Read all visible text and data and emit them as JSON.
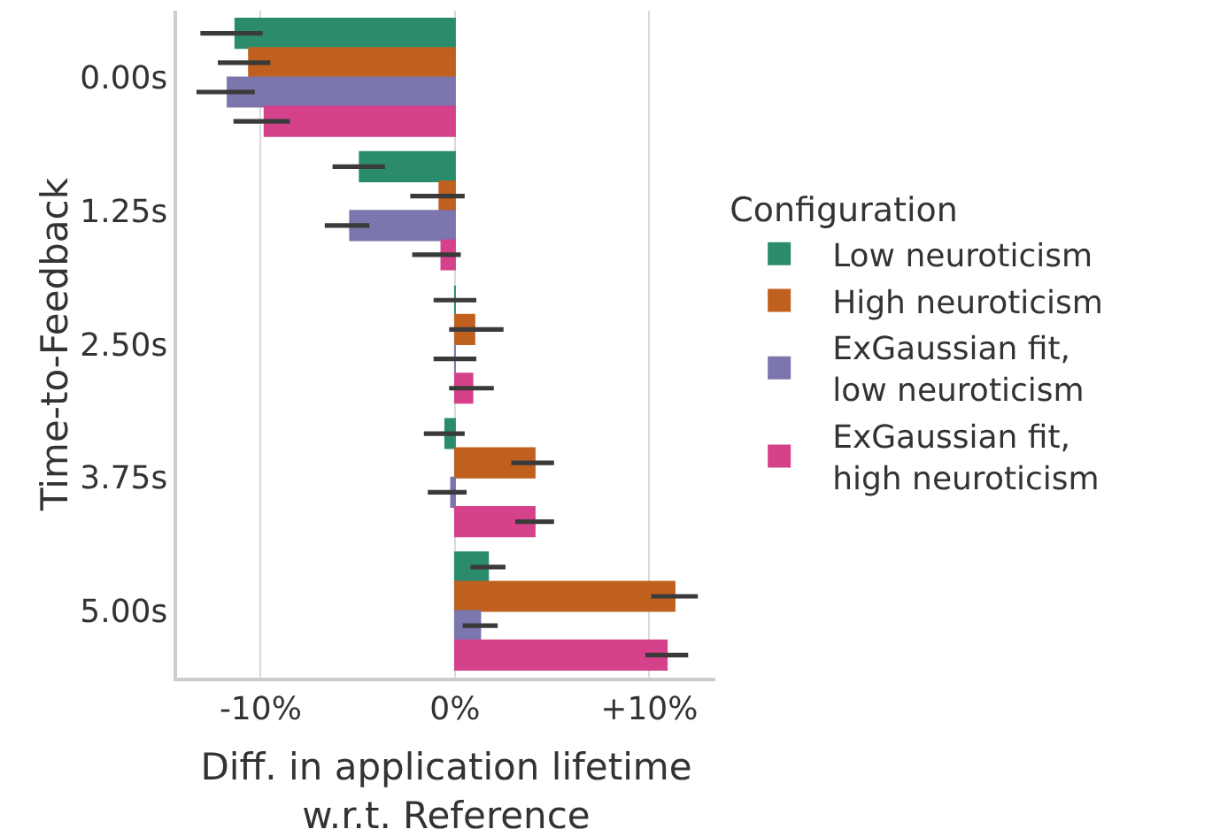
{
  "chart_data": {
    "type": "bar",
    "orientation": "horizontal",
    "xlabel": "Diff. in application lifetime\nw.r.t. Reference",
    "ylabel": "Time-to-Feedback",
    "legend_title": "Configuration",
    "legend": "right",
    "grid": "x",
    "categories": [
      "0.00s",
      "1.25s",
      "2.50s",
      "3.75s",
      "5.00s"
    ],
    "xlim": [
      -14.3,
      13.4
    ],
    "xticks": [
      {
        "value": -10,
        "label": "-10%"
      },
      {
        "value": 0,
        "label": "0%"
      },
      {
        "value": 10,
        "label": "+10%"
      }
    ],
    "series": [
      {
        "name": "Low neuroticism",
        "color": "#2a8c6c",
        "values": [
          -11.3,
          -4.9,
          0,
          -0.5,
          1.7
        ],
        "errors": [
          [
            -13.1,
            -9.9
          ],
          [
            -6.3,
            -3.6
          ],
          [
            -1.1,
            1.1
          ],
          [
            -1.6,
            0.5
          ],
          [
            0.8,
            2.6
          ]
        ]
      },
      {
        "name": "High neuroticism",
        "color": "#c0601e",
        "values": [
          -10.6,
          -0.8,
          1.0,
          4.1,
          11.3
        ],
        "errors": [
          [
            -12.2,
            -9.5
          ],
          [
            -2.3,
            0.5
          ],
          [
            -0.3,
            2.5
          ],
          [
            2.9,
            5.1
          ],
          [
            10.1,
            12.5
          ]
        ]
      },
      {
        "name": "ExGaussian fit, low neuroticism",
        "color": "#7b76ad",
        "values": [
          -11.7,
          -5.4,
          0,
          -0.2,
          1.3
        ],
        "errors": [
          [
            -13.3,
            -10.3
          ],
          [
            -6.7,
            -4.4
          ],
          [
            -1.1,
            1.1
          ],
          [
            -1.4,
            0.6
          ],
          [
            0.4,
            2.2
          ]
        ]
      },
      {
        "name": "ExGaussian fit, high neuroticism",
        "color": "#d5418a",
        "values": [
          -9.8,
          -0.7,
          0.9,
          4.1,
          10.9
        ],
        "errors": [
          [
            -11.4,
            -8.5
          ],
          [
            -2.2,
            0.3
          ],
          [
            -0.3,
            2.0
          ],
          [
            3.1,
            5.1
          ],
          [
            9.8,
            12.0
          ]
        ]
      }
    ]
  }
}
